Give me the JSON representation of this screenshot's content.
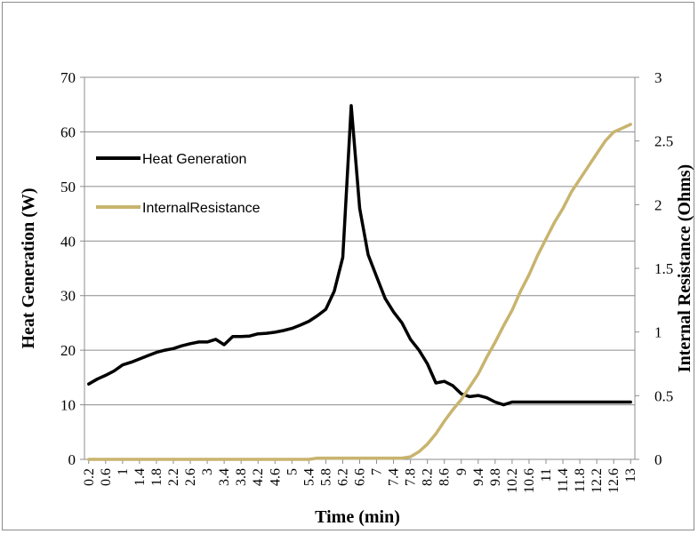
{
  "chart_data": {
    "type": "line",
    "title": "",
    "xlabel": "Time (min)",
    "ylabel_left": "Heat Generation (W)",
    "ylabel_right": "Internal Resistance (Ohms)",
    "ylim_left": [
      0,
      70
    ],
    "ylim_right": [
      0,
      3
    ],
    "yticks_left": [
      "0",
      "10",
      "20",
      "30",
      "40",
      "50",
      "60",
      "70"
    ],
    "yticks_right": [
      "0",
      "0.5",
      "1",
      "1.5",
      "2",
      "2.5",
      "3"
    ],
    "x_tick_labels": [
      "0.2",
      "0.6",
      "1",
      "1.4",
      "1.8",
      "2.2",
      "2.6",
      "3",
      "3.4",
      "3.8",
      "4.2",
      "4.6",
      "5",
      "5.4",
      "5.8",
      "6.2",
      "6.6",
      "7",
      "7.4",
      "7.8",
      "8.2",
      "8.6",
      "9",
      "9.4",
      "9.8",
      "10.2",
      "10.6",
      "11",
      "11.4",
      "11.8",
      "12.2",
      "12.6",
      "13"
    ],
    "grid": "horizontal",
    "legend_position": "top-left",
    "x": [
      0.2,
      0.4,
      0.6,
      0.8,
      1.0,
      1.2,
      1.4,
      1.6,
      1.8,
      2.0,
      2.2,
      2.4,
      2.6,
      2.8,
      3.0,
      3.2,
      3.4,
      3.6,
      3.8,
      4.0,
      4.2,
      4.4,
      4.6,
      4.8,
      5.0,
      5.2,
      5.4,
      5.6,
      5.8,
      6.0,
      6.2,
      6.4,
      6.6,
      6.8,
      7.0,
      7.2,
      7.4,
      7.6,
      7.8,
      8.0,
      8.2,
      8.4,
      8.6,
      8.8,
      9.0,
      9.2,
      9.4,
      9.6,
      9.8,
      10.0,
      10.2,
      10.4,
      10.6,
      10.8,
      11.0,
      11.2,
      11.4,
      11.6,
      11.8,
      12.0,
      12.2,
      12.4,
      12.6,
      12.8,
      13.0
    ],
    "series": [
      {
        "name": "Heat Generation",
        "axis": "left",
        "color": "#000000",
        "values": [
          13.8,
          14.7,
          15.4,
          16.2,
          17.3,
          17.8,
          18.4,
          19.0,
          19.6,
          20.0,
          20.3,
          20.8,
          21.2,
          21.5,
          21.5,
          22.0,
          21.0,
          22.5,
          22.5,
          22.6,
          23.0,
          23.1,
          23.3,
          23.6,
          24.0,
          24.6,
          25.3,
          26.3,
          27.5,
          30.8,
          37.0,
          64.8,
          46.0,
          37.5,
          33.5,
          29.5,
          27.0,
          25.0,
          22.0,
          20.0,
          17.5,
          14.0,
          14.3,
          13.5,
          12.0,
          11.5,
          11.7,
          11.3,
          10.5,
          10.0,
          10.5,
          10.5,
          10.5,
          10.5,
          10.5,
          10.5,
          10.5,
          10.5,
          10.5,
          10.5,
          10.5,
          10.5,
          10.5,
          10.5,
          10.5
        ]
      },
      {
        "name": "InternalResistance",
        "axis": "right",
        "color": "#c8b46e",
        "values": [
          0,
          0,
          0,
          0,
          0,
          0,
          0,
          0,
          0,
          0,
          0,
          0,
          0,
          0,
          0,
          0,
          0,
          0,
          0,
          0,
          0,
          0,
          0,
          0,
          0,
          0,
          0,
          0.01,
          0.01,
          0.01,
          0.01,
          0.01,
          0.01,
          0.01,
          0.01,
          0.01,
          0.01,
          0.01,
          0.02,
          0.06,
          0.12,
          0.2,
          0.3,
          0.39,
          0.47,
          0.57,
          0.67,
          0.8,
          0.92,
          1.05,
          1.17,
          1.32,
          1.45,
          1.6,
          1.73,
          1.86,
          1.97,
          2.1,
          2.2,
          2.3,
          2.4,
          2.5,
          2.57,
          2.6,
          2.63
        ]
      }
    ]
  }
}
